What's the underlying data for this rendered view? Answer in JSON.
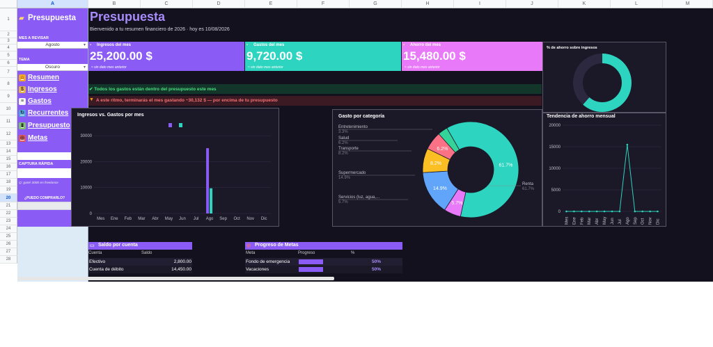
{
  "columns": [
    "A",
    "B",
    "C",
    "D",
    "E",
    "F",
    "G",
    "H",
    "I",
    "J",
    "K",
    "L",
    "M"
  ],
  "rows": [
    "1",
    "2",
    "3",
    "4",
    "5",
    "6",
    "7",
    "8",
    "9",
    "10",
    "11",
    "12",
    "13",
    "14",
    "15",
    "16",
    "17",
    "18",
    "19",
    "20",
    "21",
    "22",
    "23",
    "24",
    "25",
    "26",
    "27",
    "28"
  ],
  "sidebar": {
    "title": "Presupuesta",
    "month_label": "MES A REVISAR",
    "month_value": "Agosto",
    "theme_label": "TEMA",
    "theme_value": "Oscuro",
    "nav": [
      {
        "label": "Resumen",
        "icon": "house-icon",
        "color": "#f5a623",
        "glyph": "⌂"
      },
      {
        "label": "Ingresos",
        "icon": "money-bag-icon",
        "color": "#e6b34a",
        "glyph": "$"
      },
      {
        "label": "Gastos",
        "icon": "receipt-icon",
        "color": "#f4f4f4",
        "glyph": "≡"
      },
      {
        "label": "Recurrentes",
        "icon": "refresh-icon",
        "color": "#4fa3e0",
        "glyph": "↻"
      },
      {
        "label": "Presupuesto",
        "icon": "bar-chart-icon",
        "color": "#7cc36b",
        "glyph": "▮"
      },
      {
        "label": "Metas",
        "icon": "target-icon",
        "color": "#e25757",
        "glyph": "◎"
      }
    ],
    "quick_label": "CAPTURA RÁPIDA",
    "quick_hint_1": "Q: gasté 200 en súper",
    "quick_hint_2": "Q: gané 3000 en freelance",
    "buy_label": "¿PUEDO COMPRARLO?"
  },
  "header": {
    "title": "Presupuesta",
    "subtitle": "Bienvenido a tu resumen financiero de 2026 · hoy es 10/08/2026"
  },
  "kpis": [
    {
      "label": "Ingresos del mes",
      "value": "25,200.00 $",
      "sub": "≈ sin dato mes anterior",
      "color": "#8a5cf5",
      "icon": "money-icon"
    },
    {
      "label": "Gastos del mes",
      "value": "9,720.00 $",
      "sub": "≈ sin dato mes anterior",
      "color": "#2dd4bf",
      "icon": "card-icon"
    },
    {
      "label": "Ahorro del mes",
      "value": "15,480.00 $",
      "sub": "≈ sin dato mes anterior",
      "color": "#e879f9",
      "icon": "piggy-icon"
    }
  ],
  "alerts": {
    "ok": "✔ Todos los gastos están dentro del presupuesto este mes",
    "warn": "A este ritmo, terminarás el mes gastando ~30,132 $ — por encima de tu presupuesto",
    "ok_color": "#4ade80",
    "warn_color": "#f87171"
  },
  "savings_pct": {
    "title": "% de ahorro sobre ingresos",
    "value": 0.614
  },
  "income_chart": {
    "title": "Ingresos vs. Gastos por mes",
    "chart_data": {
      "type": "bar",
      "categories": [
        "Mes",
        "Ene",
        "Feb",
        "Mar",
        "Abr",
        "May",
        "Jun",
        "Jul",
        "Ago",
        "Sep",
        "Oct",
        "Nov",
        "Dic"
      ],
      "series": [
        {
          "values": [
            0,
            0,
            0,
            0,
            0,
            0,
            0,
            0,
            25200,
            0,
            0,
            0,
            0
          ],
          "color": "#8a5cf5"
        },
        {
          "values": [
            0,
            0,
            0,
            0,
            0,
            0,
            0,
            0,
            9720,
            0,
            0,
            0,
            0
          ],
          "color": "#2dd4bf"
        }
      ],
      "yticks": [
        0,
        10000,
        20000,
        30000
      ],
      "ylim": [
        0,
        33000
      ]
    }
  },
  "category_chart": {
    "title": "Gasto por categoría",
    "chart_data": {
      "type": "pie",
      "slices": [
        {
          "label": "Renta",
          "pct": "61.7%",
          "value": 61.7,
          "color": "#2dd4bf"
        },
        {
          "label": "Servicios (luz, agua,...",
          "pct": "5.7%",
          "value": 5.7,
          "color": "#e879f9"
        },
        {
          "label": "Supermercado",
          "pct": "14.9%",
          "value": 14.9,
          "color": "#60a5fa"
        },
        {
          "label": "Transporte",
          "pct": "8.2%",
          "value": 8.2,
          "color": "#fbbf24"
        },
        {
          "label": "Salud",
          "pct": "6.2%",
          "value": 6.2,
          "color": "#fb7185"
        },
        {
          "label": "Entretenimiento",
          "pct": "3.3%",
          "value": 3.3,
          "color": "#34d399"
        }
      ]
    }
  },
  "trend_chart": {
    "title": "Tendencia de ahorro mensual",
    "chart_data": {
      "type": "line",
      "categories": [
        "Mes",
        "Ene",
        "Feb",
        "Mar",
        "Abr",
        "May",
        "Jun",
        "Jul",
        "Ago",
        "Sep",
        "Oct",
        "Nov",
        "Dic"
      ],
      "values": [
        0,
        0,
        0,
        0,
        0,
        0,
        0,
        0,
        15480,
        0,
        0,
        0,
        0
      ],
      "yticks": [
        0,
        5000,
        10000,
        15000,
        20000
      ],
      "ylim": [
        0,
        20000
      ],
      "color": "#2dd4bf"
    }
  },
  "accounts": {
    "title": "Saldo por cuenta",
    "headers": [
      "Cuenta",
      "Saldo"
    ],
    "rows": [
      [
        "Efectivo",
        "2,800.00"
      ],
      [
        "Cuenta de débito",
        "14,450.00"
      ]
    ]
  },
  "goals": {
    "title": "Progreso de Metas",
    "headers": [
      "Meta",
      "Progreso",
      "%"
    ],
    "rows": [
      {
        "name": "Fondo de emergencia",
        "progress": 0.5,
        "pct": "50%"
      },
      {
        "name": "Vacaciones",
        "progress": 0.5,
        "pct": "50%"
      }
    ]
  }
}
